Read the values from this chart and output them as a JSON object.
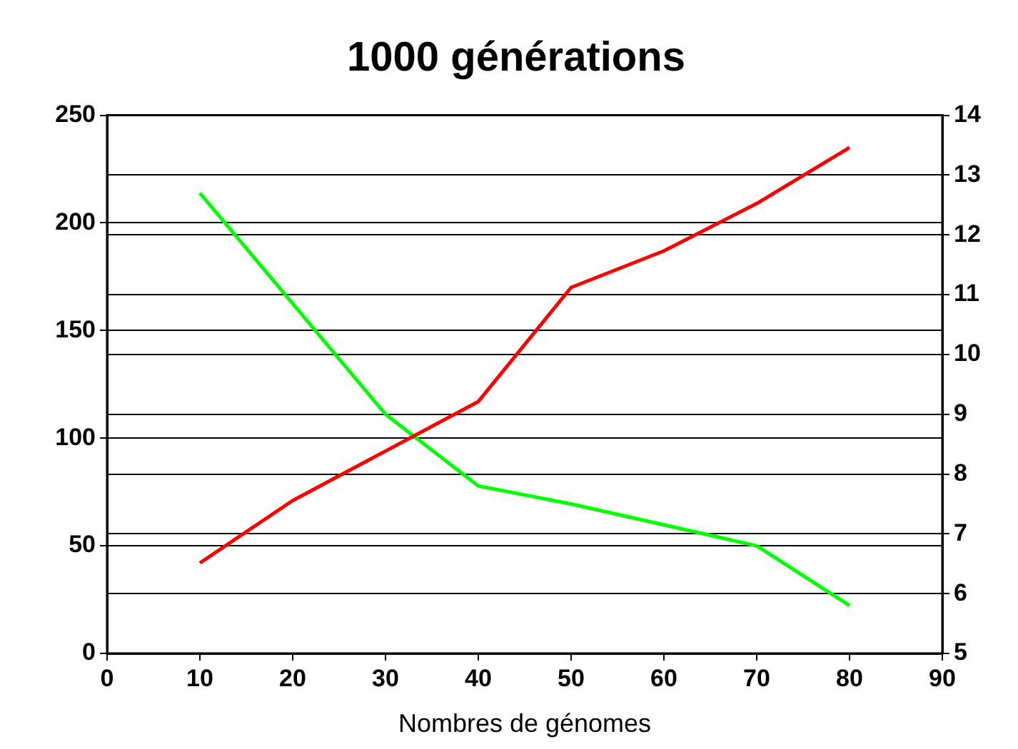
{
  "chart_data": {
    "type": "line",
    "title": "1000 générations",
    "xlabel": "Nombres de génomes",
    "x": [
      10,
      20,
      30,
      40,
      50,
      60,
      70,
      80
    ],
    "xlim": [
      0,
      90
    ],
    "xticks": [
      0,
      10,
      20,
      30,
      40,
      50,
      60,
      70,
      80,
      90
    ],
    "ylim": [
      0,
      250
    ],
    "yticks": [
      0,
      50,
      100,
      150,
      200,
      250
    ],
    "y2lim": [
      5,
      14
    ],
    "y2ticks": [
      5,
      6,
      7,
      8,
      9,
      10,
      11,
      12,
      13,
      14
    ],
    "series": [
      {
        "color": "#ff0000",
        "values": [
          42,
          71,
          94,
          117,
          170,
          187,
          209,
          235
        ]
      },
      {
        "color": "#00ff00",
        "axis": "y2",
        "values": [
          12.7,
          10.85,
          9.0,
          7.8,
          7.5,
          7.15,
          6.8,
          5.8
        ]
      }
    ],
    "grid": "y",
    "legend": false,
    "marker": "none",
    "line_style": "solid"
  }
}
